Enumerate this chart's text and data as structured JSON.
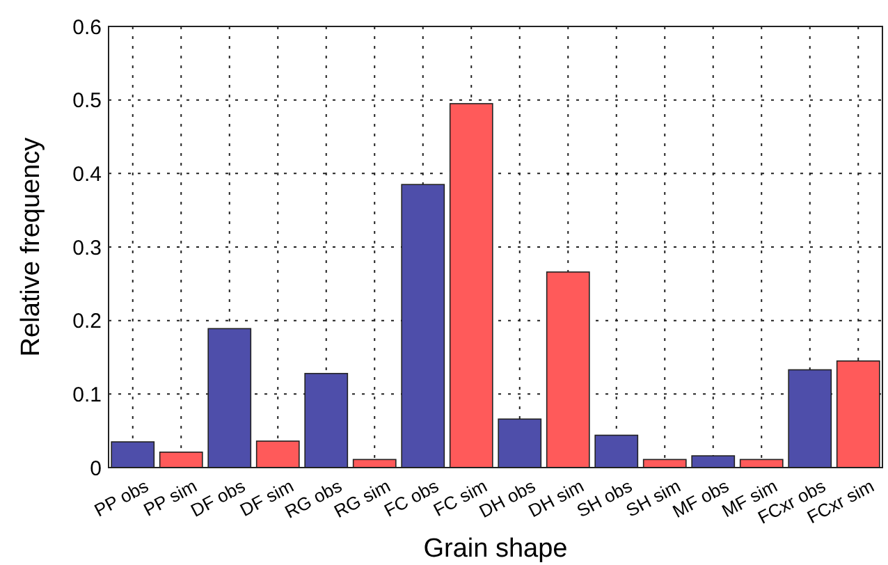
{
  "chart_data": {
    "type": "bar",
    "xlabel": "Grain shape",
    "ylabel": "Relative frequency",
    "categories": [
      "PP obs",
      "PP sim",
      "DF obs",
      "DF sim",
      "RG obs",
      "RG sim",
      "FC obs",
      "FC sim",
      "DH obs",
      "DH sim",
      "SH obs",
      "SH sim",
      "MF obs",
      "MF sim",
      "FCxr obs",
      "FCxr sim"
    ],
    "values": [
      0.035,
      0.021,
      0.189,
      0.036,
      0.128,
      0.011,
      0.385,
      0.495,
      0.066,
      0.266,
      0.044,
      0.011,
      0.016,
      0.011,
      0.133,
      0.145
    ],
    "colors": [
      "#4e4eaa",
      "#ff5a5a",
      "#4e4eaa",
      "#ff5a5a",
      "#4e4eaa",
      "#ff5a5a",
      "#4e4eaa",
      "#ff5a5a",
      "#4e4eaa",
      "#ff5a5a",
      "#4e4eaa",
      "#ff5a5a",
      "#4e4eaa",
      "#ff5a5a",
      "#4e4eaa",
      "#ff5a5a"
    ],
    "ylim": [
      0,
      0.6
    ],
    "yticks": [
      0,
      0.1,
      0.2,
      0.3,
      0.4,
      0.5,
      0.6
    ],
    "grid": true
  }
}
